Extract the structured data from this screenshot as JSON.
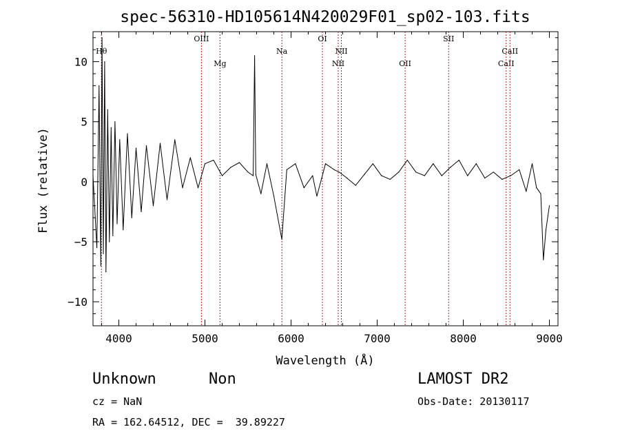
{
  "chart_data": {
    "type": "line",
    "title": "spec-56310-HD105614N420029F01_sp02-103.fits",
    "xlabel": "Wavelength (Å)",
    "ylabel": "Flux (relative)",
    "xlim": [
      3700,
      9100
    ],
    "ylim": [
      -12,
      12.5
    ],
    "xticks": [
      4000,
      5000,
      6000,
      7000,
      8000,
      9000
    ],
    "yticks": [
      -10,
      -5,
      0,
      5,
      10
    ],
    "xtick_labels": [
      "4000",
      "5000",
      "6000",
      "7000",
      "8000",
      "9000"
    ],
    "ytick_labels": [
      "−10",
      "−5",
      "0",
      "5",
      "10"
    ],
    "grid": false,
    "lines": [
      {
        "label": "Hθ",
        "wavelength": 3798,
        "label_row": 1
      },
      {
        "label": "OIII",
        "wavelength": 4959,
        "label_row": 0
      },
      {
        "label": "Mg",
        "wavelength": 5175,
        "label_row": 2
      },
      {
        "label": "Na",
        "wavelength": 5893,
        "label_row": 1
      },
      {
        "label": "OI",
        "wavelength": 6364,
        "label_row": 0
      },
      {
        "label": "NII",
        "wavelength": 6548,
        "label_row": 2
      },
      {
        "label": "NII",
        "wavelength": 6584,
        "label_row": 1
      },
      {
        "label": "OII",
        "wavelength": 7325,
        "label_row": 2
      },
      {
        "label": "SII",
        "wavelength": 7830,
        "label_row": 0
      },
      {
        "label": "CaII",
        "wavelength": 8498,
        "label_row": 2
      },
      {
        "label": "CaII",
        "wavelength": 8542,
        "label_row": 1
      }
    ],
    "series": [
      {
        "x": [
          3700,
          3745,
          3770,
          3790,
          3805,
          3820,
          3835,
          3850,
          3870,
          3890,
          3910,
          3930,
          3955,
          3980,
          4010,
          4050,
          4100,
          4150,
          4200,
          4260,
          4320,
          4400,
          4480,
          4560,
          4650,
          4740,
          4830,
          4920,
          5000,
          5100,
          5200,
          5300,
          5400,
          5500,
          5560,
          5577,
          5590,
          5650,
          5720,
          5800,
          5893,
          5950,
          6050,
          6150,
          6250,
          6300,
          6400,
          6500,
          6560,
          6650,
          6750,
          6850,
          6950,
          7050,
          7150,
          7250,
          7350,
          7450,
          7550,
          7650,
          7750,
          7850,
          7950,
          8050,
          8150,
          8250,
          8350,
          8450,
          8550,
          8650,
          8730,
          8800,
          8850,
          8900,
          8930,
          8960,
          9000
        ],
        "y": [
          0.5,
          -5.5,
          8.0,
          -7.0,
          12.0,
          -6.0,
          10.0,
          -7.5,
          6.0,
          -5.0,
          4.5,
          -4.5,
          5.0,
          -3.5,
          3.5,
          -4.0,
          4.0,
          -3.0,
          2.8,
          -2.5,
          3.0,
          -2.0,
          3.2,
          -1.5,
          3.5,
          -0.5,
          2.0,
          -0.5,
          1.5,
          1.8,
          0.5,
          1.2,
          1.6,
          0.8,
          0.5,
          10.5,
          0.6,
          -1.0,
          1.5,
          -1.2,
          -4.8,
          1.0,
          1.5,
          -0.5,
          0.5,
          -1.2,
          1.5,
          1.0,
          0.8,
          0.3,
          -0.3,
          0.6,
          1.5,
          0.5,
          0.2,
          0.8,
          1.8,
          0.8,
          0.5,
          1.5,
          0.5,
          1.2,
          1.8,
          0.5,
          1.5,
          0.3,
          0.8,
          0.2,
          0.5,
          1.0,
          -0.8,
          1.5,
          -0.5,
          -1.0,
          -6.5,
          -4.0,
          -2.0
        ]
      }
    ]
  },
  "info": {
    "object_class": "Unknown",
    "object_subclass": "Non",
    "survey": "LAMOST DR2",
    "cz": "cz = NaN",
    "obs_date": "Obs-Date: 20130117",
    "coords": "RA = 162.64512, DEC =  39.89227"
  }
}
